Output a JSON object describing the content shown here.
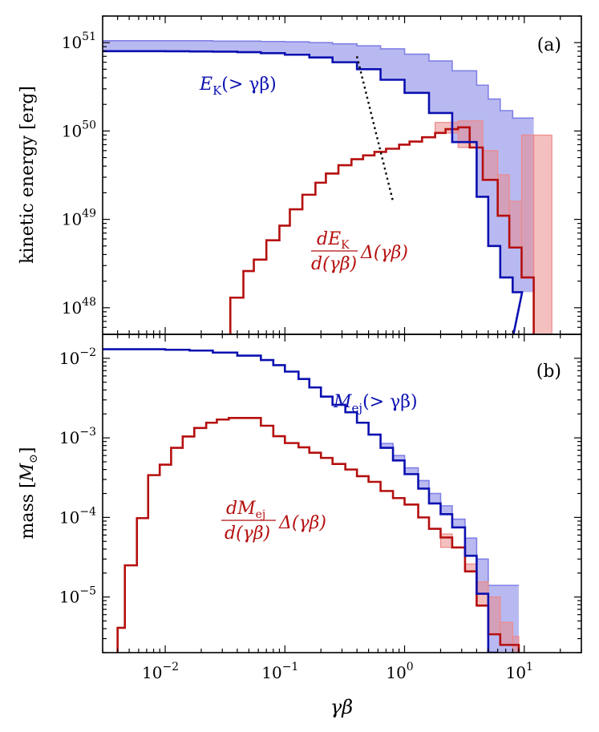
{
  "chart_data": [
    {
      "type": "step",
      "panel_label": "(a)",
      "ylabel": "kinetic energy [erg]",
      "xscale": "log",
      "yscale": "log",
      "xlim": [
        0.003,
        30
      ],
      "ylim": [
        5e+47,
        2e+51
      ],
      "y_ticks": [
        {
          "value": 1e+48,
          "base": "10",
          "exp": "48"
        },
        {
          "value": 1e+49,
          "base": "10",
          "exp": "49"
        },
        {
          "value": 1e+50,
          "base": "10",
          "exp": "50"
        },
        {
          "value": 1e+51,
          "base": "10",
          "exp": "51"
        }
      ],
      "series": [
        {
          "name": "E_K(> γβ)",
          "label_main": "E",
          "label_sub": "K",
          "label_rest": "(> γβ)",
          "color": "#0b10b0",
          "fill_color": "#7f80e6",
          "x_edges": [
            0.003,
            0.0063,
            0.01,
            0.016,
            0.025,
            0.04,
            0.063,
            0.1,
            0.16,
            0.25,
            0.4,
            0.63,
            1.0,
            1.6,
            2.5,
            4.0,
            5.0,
            6.3,
            8.0
          ],
          "values": [
            8e+50,
            8e+50,
            7.98e+50,
            7.95e+50,
            7.9e+50,
            7.8e+50,
            7.6e+50,
            7.3e+50,
            6.8e+50,
            6e+50,
            5e+50,
            3.8e+50,
            2.7e+50,
            1.6e+50,
            7.5e+49,
            1.8e+49,
            5e+48,
            2.2e+48,
            1.5e+48
          ],
          "upper_values": [
            1.05e+51,
            1.05e+51,
            1.05e+51,
            1.05e+51,
            1.04e+51,
            1.04e+51,
            1.03e+51,
            1.02e+51,
            1e+51,
            9.7e+50,
            9.2e+50,
            8.5e+50,
            7.4e+50,
            6.2e+50,
            4.8e+50,
            3.3e+50,
            2.3e+50,
            1.7e+50,
            1.4e+50
          ],
          "upper_edge_end": 12.0
        },
        {
          "name": "dE_K/d(γβ) Δ(γβ)",
          "label_num_main": "dE",
          "label_num_sub": "K",
          "label_den": "d(γβ)",
          "label_rest": "Δ(γβ)",
          "color": "#b50f0f",
          "fill_color": "#eb8a8a",
          "x_edges": [
            0.035,
            0.045,
            0.055,
            0.07,
            0.09,
            0.11,
            0.14,
            0.18,
            0.22,
            0.28,
            0.36,
            0.45,
            0.56,
            0.7,
            0.9,
            1.1,
            1.4,
            1.8,
            2.2,
            2.8,
            3.5,
            4.5,
            6.0,
            7.5,
            9.5,
            12.0
          ],
          "values": [
            1.3e+48,
            2.6e+48,
            3.5e+48,
            5.8e+48,
            8.5e+48,
            1.3e+49,
            1.9e+49,
            2.6e+49,
            3.3e+49,
            4.1e+49,
            4.8e+49,
            5.3e+49,
            5.8e+49,
            6.3e+49,
            7e+49,
            7.6e+49,
            8.5e+49,
            9.5e+49,
            1.05e+50,
            1.1e+50,
            6.5e+49,
            2.8e+49,
            1.1e+49,
            4.8e+48,
            2.2e+48
          ],
          "shaded": [
            {
              "x0": 1.8,
              "x1": 2.8,
              "y0": 9.5e+49,
              "y1": 1.25e+50
            },
            {
              "x0": 2.8,
              "x1": 4.5,
              "y0": 6.5e+49,
              "y1": 1.3e+50
            },
            {
              "x0": 4.5,
              "x1": 6.0,
              "y0": 2.8e+49,
              "y1": 6e+49
            },
            {
              "x0": 6.0,
              "x1": 7.5,
              "y0": 1.1e+49,
              "y1": 3.2e+49
            },
            {
              "x0": 7.5,
              "x1": 9.5,
              "y0": 4.8e+48,
              "y1": 1.6e+49
            },
            {
              "x0": 9.5,
              "x1": 12.0,
              "y0": 2.2e+48,
              "y1": 9e+49
            },
            {
              "x0": 12.0,
              "x1": 17.0,
              "y0": 5e+47,
              "y1": 9e+49
            }
          ]
        }
      ],
      "dotted_line": {
        "x": [
          0.4,
          0.8
        ],
        "y": [
          7e+50,
          1.6e+49
        ],
        "color": "#000000",
        "style": "dotted"
      }
    },
    {
      "type": "step",
      "panel_label": "(b)",
      "ylabel_main": "mass [",
      "ylabel_italic": "M",
      "ylabel_sub": "⊙",
      "ylabel_close": "]",
      "xlabel": "γβ",
      "xscale": "log",
      "yscale": "log",
      "xlim": [
        0.003,
        30
      ],
      "ylim": [
        2e-06,
        0.02
      ],
      "x_ticks": [
        {
          "value": 0.01,
          "base": "10",
          "exp": "−2"
        },
        {
          "value": 0.1,
          "base": "10",
          "exp": "−1"
        },
        {
          "value": 1,
          "base": "10",
          "exp": "0"
        },
        {
          "value": 10,
          "base": "10",
          "exp": "1"
        }
      ],
      "y_ticks": [
        {
          "value": 1e-05,
          "base": "10",
          "exp": "−5"
        },
        {
          "value": 0.0001,
          "base": "10",
          "exp": "−4"
        },
        {
          "value": 0.001,
          "base": "10",
          "exp": "−3"
        },
        {
          "value": 0.01,
          "base": "10",
          "exp": "−2"
        }
      ],
      "series": [
        {
          "name": "M_ej(> γβ)",
          "label_main": "M",
          "label_sub": "ej",
          "label_rest": "(> γβ)",
          "color": "#0b10b0",
          "fill_color": "#7f80e6",
          "x_edges": [
            0.003,
            0.0063,
            0.01,
            0.016,
            0.025,
            0.04,
            0.063,
            0.08,
            0.1,
            0.13,
            0.16,
            0.2,
            0.25,
            0.32,
            0.4,
            0.5,
            0.63,
            0.8,
            1.0,
            1.3,
            1.6,
            2.0,
            2.5,
            3.2,
            4.0,
            5.0
          ],
          "values": [
            0.013,
            0.013,
            0.0128,
            0.0125,
            0.0118,
            0.0108,
            0.0095,
            0.0082,
            0.0068,
            0.0055,
            0.0043,
            0.0033,
            0.0026,
            0.0021,
            0.00155,
            0.0011,
            0.00075,
            0.00052,
            0.00035,
            0.00023,
            0.00015,
            0.00011,
            7.5e-05,
            3.3e-05,
            1.1e-05,
            2e-06
          ],
          "upper_values": [
            0.013,
            0.013,
            0.0128,
            0.0125,
            0.0118,
            0.0108,
            0.0095,
            0.0082,
            0.0068,
            0.0055,
            0.0043,
            0.0033,
            0.0026,
            0.0021,
            0.00155,
            0.0011,
            0.00085,
            0.0006,
            0.00042,
            0.00029,
            0.0002,
            0.00014,
            9.5e-05,
            5.5e-05,
            3e-05,
            1.4e-05
          ],
          "upper_edge_end": 9.0
        },
        {
          "name": "dM_ej/d(γβ) Δ(γβ)",
          "label_num_main": "dM",
          "label_num_sub": "ej",
          "label_den": "d(γβ)",
          "label_rest": "Δ(γβ)",
          "color": "#b50f0f",
          "fill_color": "#eb8a8a",
          "x_edges": [
            0.004,
            0.0046,
            0.0058,
            0.0072,
            0.009,
            0.0112,
            0.014,
            0.0175,
            0.022,
            0.027,
            0.034,
            0.042,
            0.063,
            0.08,
            0.1,
            0.13,
            0.16,
            0.2,
            0.25,
            0.32,
            0.4,
            0.5,
            0.63,
            0.8,
            1.0,
            1.3,
            1.6,
            2.0,
            2.5,
            3.2,
            4.0,
            5.0,
            6.3,
            8.0,
            9.0
          ],
          "values": [
            4.1e-06,
            2.5e-05,
            9.8e-05,
            0.00034,
            0.00046,
            0.00075,
            0.00104,
            0.00133,
            0.00155,
            0.0017,
            0.00178,
            0.00178,
            0.00142,
            0.00105,
            0.00086,
            0.00076,
            0.00065,
            0.00056,
            0.00047,
            0.0004,
            0.00033,
            0.00028,
            0.000215,
            0.000175,
            0.000145,
            0.0001,
            7.2e-05,
            5.6e-05,
            4.2e-05,
            2.1e-05,
            7.8e-06,
            3.4e-06,
            2.5e-06,
            2.5e-06
          ],
          "shaded": [
            {
              "x0": 2.0,
              "x1": 2.5,
              "y0": 4.2e-05,
              "y1": 6.2e-05
            },
            {
              "x0": 3.2,
              "x1": 4.0,
              "y0": 2.1e-05,
              "y1": 2.6e-05
            },
            {
              "x0": 4.0,
              "x1": 5.0,
              "y0": 7.8e-06,
              "y1": 1.55e-05
            },
            {
              "x0": 5.0,
              "x1": 6.3,
              "y0": 3.4e-06,
              "y1": 1e-05
            },
            {
              "x0": 6.3,
              "x1": 8.0,
              "y0": 2.5e-06,
              "y1": 4.8e-06
            },
            {
              "x0": 8.0,
              "x1": 9.0,
              "y0": 2e-06,
              "y1": 3.2e-06
            }
          ]
        }
      ]
    }
  ]
}
